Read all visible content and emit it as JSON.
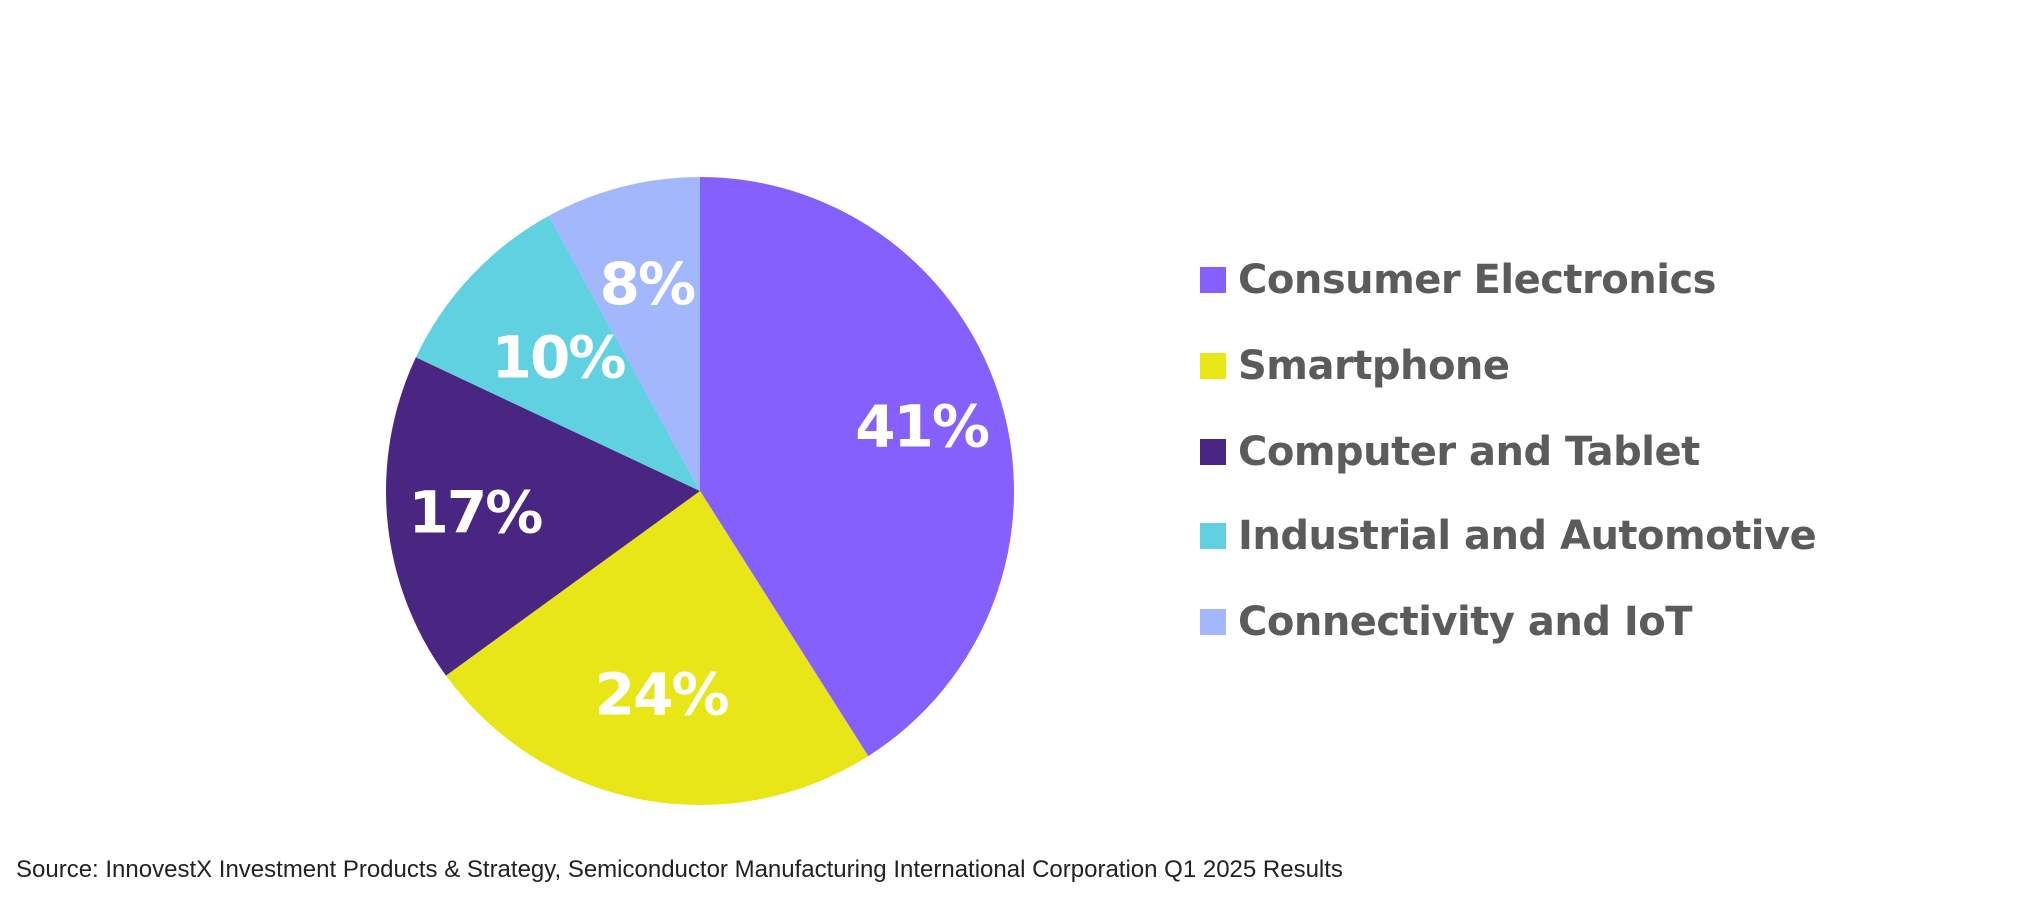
{
  "chart_data": {
    "type": "pie",
    "title": "",
    "categories": [
      "Consumer Electronics",
      "Smartphone",
      "Computer and Tablet",
      "Industrial and Automotive",
      "Connectivity and IoT"
    ],
    "values": [
      41,
      24,
      17,
      10,
      8
    ],
    "data_labels": [
      "41%",
      "24%",
      "17%",
      "10%",
      "8%"
    ],
    "colors": [
      "#8660fd",
      "#e8e617",
      "#4a2683",
      "#5fd1e0",
      "#a3b7fd"
    ],
    "start_angle_deg": 0,
    "direction": "clockwise",
    "legend_position": "right"
  },
  "legend": {
    "items": [
      {
        "label": "Consumer Electronics",
        "color": "#8660fd"
      },
      {
        "label": "Smartphone",
        "color": "#e8e617"
      },
      {
        "label": "Computer and Tablet",
        "color": "#4a2683"
      },
      {
        "label": "Industrial and Automotive",
        "color": "#5fd1e0"
      },
      {
        "label": "Connectivity and IoT",
        "color": "#a3b7fd"
      }
    ]
  },
  "source_note": "Source: InnovestX Investment Products & Strategy, Semiconductor Manufacturing International Corporation Q1 2025 Results"
}
